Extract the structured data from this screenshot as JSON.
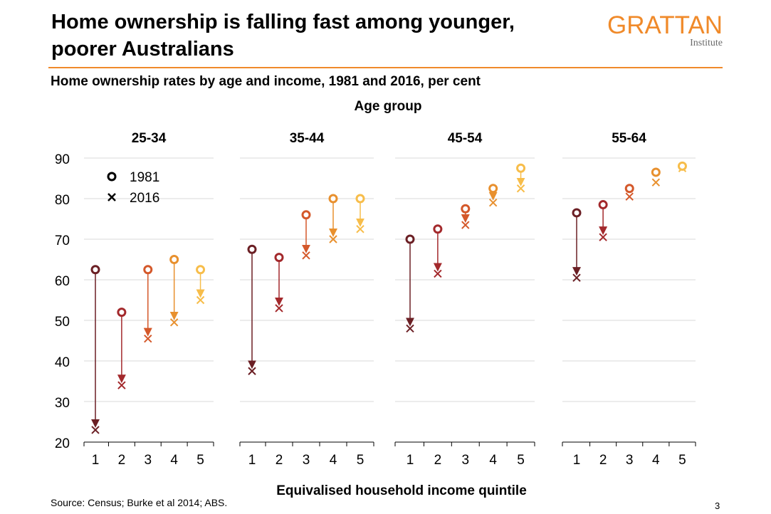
{
  "header": {
    "title_line1": "Home ownership is falling fast among younger,",
    "title_line2": "poorer Australians",
    "logo_main": "GRATTAN",
    "logo_sub": "Institute"
  },
  "subtitle": "Home ownership rates by age and income, 1981 and 2016, per cent",
  "footer": {
    "source": "Source: Census; Burke et al 2014; ABS.",
    "page_number": "3"
  },
  "colors": {
    "quintile": [
      "#6b1f24",
      "#a3292c",
      "#d4582a",
      "#e8902e",
      "#f7bd4a"
    ],
    "grid": "#d9d9d9",
    "brand": "#f08a2a"
  },
  "chart_data": {
    "type": "scatter",
    "top_label": "Age group",
    "xlabel": "Equivalised household income quintile",
    "ylabel": "",
    "ylim": [
      20,
      90
    ],
    "yticks": [
      20,
      30,
      40,
      50,
      60,
      70,
      80,
      90
    ],
    "categories": [
      "1",
      "2",
      "3",
      "4",
      "5"
    ],
    "grid": true,
    "legend": {
      "position": "top-left",
      "items": [
        {
          "name": "1981",
          "marker": "circle"
        },
        {
          "name": "2016",
          "marker": "cross"
        }
      ]
    },
    "panels": [
      {
        "name": "25-34",
        "values_1981": [
          62.5,
          52,
          62.5,
          65,
          62.5
        ],
        "values_2016": [
          23,
          34,
          45.5,
          49.5,
          55
        ]
      },
      {
        "name": "35-44",
        "values_1981": [
          67.5,
          65.5,
          76,
          80,
          80
        ],
        "values_2016": [
          37.5,
          53,
          66,
          70,
          72.5
        ]
      },
      {
        "name": "45-54",
        "values_1981": [
          70,
          72.5,
          77.5,
          82.5,
          87.5
        ],
        "values_2016": [
          48,
          61.5,
          73.5,
          79,
          82.5
        ]
      },
      {
        "name": "55-64",
        "values_1981": [
          76.5,
          78.5,
          82.5,
          86.5,
          88
        ],
        "values_2016": [
          60.5,
          70.5,
          80.5,
          84,
          87.5
        ]
      }
    ]
  }
}
